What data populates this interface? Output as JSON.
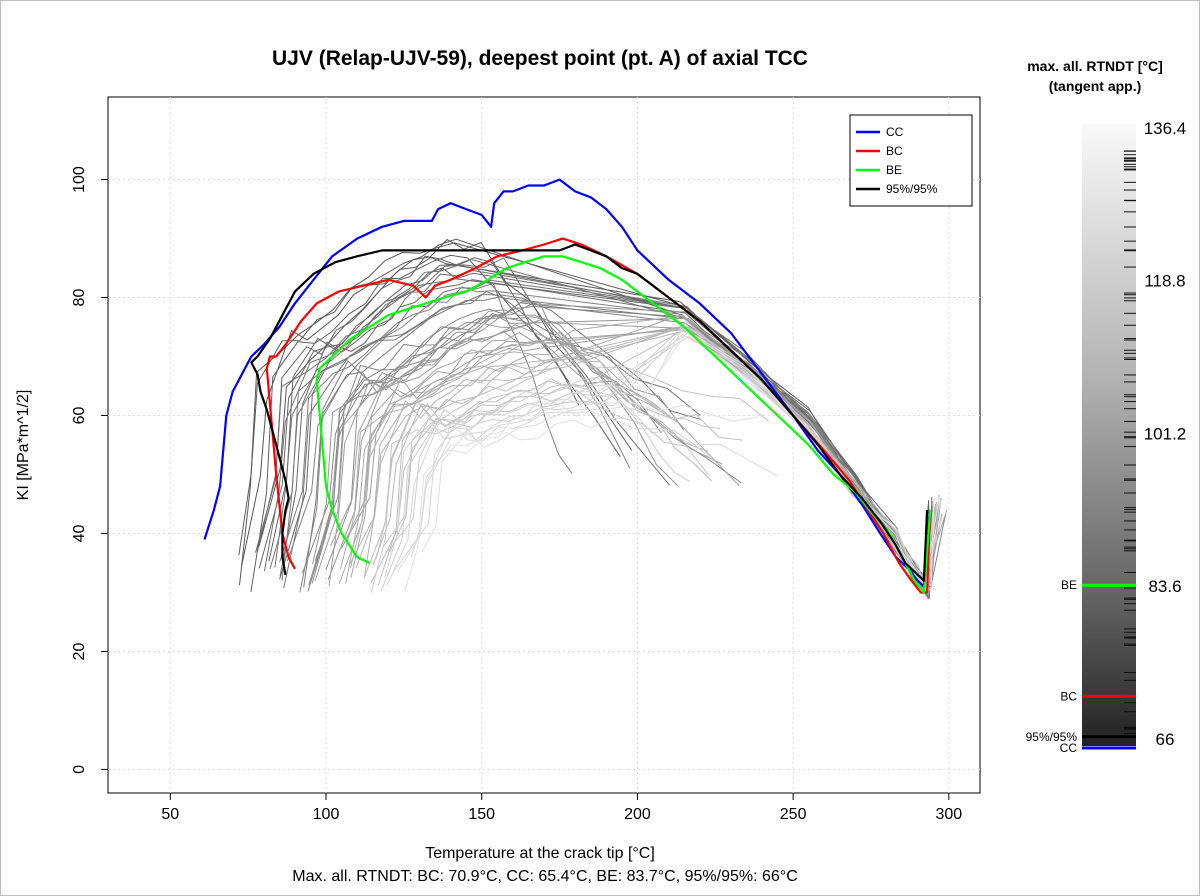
{
  "chart_data": {
    "type": "line",
    "title": "UJV (Relap-UJV-59), deepest point (pt. A) of axial TCC",
    "xlabel": "Temperature at the crack tip [°C]",
    "ylabel": "KI [MPa*m^1/2]",
    "subtitle": "Max. all. RTNDT: BC: 70.9°C, CC: 65.4°C, BE: 83.7°C, 95%/95%: 66°C",
    "xlim": [
      30,
      310
    ],
    "ylim": [
      -4,
      114
    ],
    "x_ticks": [
      "50",
      "100",
      "150",
      "200",
      "250",
      "300"
    ],
    "y_ticks": [
      "0",
      "20",
      "40",
      "60",
      "80",
      "100"
    ],
    "grid": true,
    "legend_position": "top-right",
    "legend": [
      {
        "name": "CC",
        "color": "#0000ff"
      },
      {
        "name": "BC",
        "color": "#ff0000"
      },
      {
        "name": "BE",
        "color": "#00ff00"
      },
      {
        "name": "95%/95%",
        "color": "#000000"
      }
    ],
    "series": [
      {
        "name": "CC",
        "color": "#0000ff",
        "x": [
          61,
          64,
          66,
          67,
          68,
          70,
          73,
          76,
          80,
          85,
          90,
          96,
          102,
          110,
          118,
          125,
          130,
          134,
          136,
          140,
          145,
          150,
          153,
          154,
          157,
          160,
          165,
          170,
          175,
          180,
          185,
          190,
          195,
          200,
          210,
          220,
          230,
          240,
          250,
          258,
          265,
          272,
          278,
          283,
          287,
          290,
          292,
          293,
          294
        ],
        "y": [
          39,
          44,
          48,
          54,
          60,
          64,
          67,
          70,
          72,
          75,
          79,
          83,
          87,
          90,
          92,
          93,
          93,
          93,
          95,
          96,
          95,
          94,
          92,
          96,
          98,
          98,
          99,
          99,
          100,
          98,
          97,
          95,
          92,
          88,
          83,
          79,
          74,
          67,
          60,
          54,
          50,
          45,
          40,
          36,
          34,
          32,
          31,
          40,
          44
        ]
      },
      {
        "name": "BC",
        "color": "#ff0000",
        "x": [
          90,
          88,
          86,
          85,
          84,
          83,
          82,
          81,
          82,
          84,
          87,
          92,
          97,
          104,
          112,
          120,
          128,
          132,
          135,
          140,
          148,
          155,
          163,
          170,
          176,
          182,
          190,
          200,
          210,
          220,
          230,
          240,
          250,
          260,
          268,
          274,
          279,
          284,
          288,
          291,
          293,
          294
        ],
        "y": [
          34,
          36,
          40,
          45,
          50,
          56,
          62,
          68,
          70,
          70,
          72,
          76,
          79,
          81,
          82,
          83,
          82,
          80,
          82,
          83,
          85,
          87,
          88,
          89,
          90,
          89,
          87,
          84,
          80,
          76,
          71,
          66,
          60,
          54,
          49,
          44,
          40,
          35,
          32,
          30,
          30,
          44
        ]
      },
      {
        "name": "BE",
        "color": "#00ff00",
        "x": [
          114,
          110,
          105,
          102,
          100,
          99,
          98,
          97,
          98,
          102,
          108,
          114,
          120,
          126,
          132,
          138,
          145,
          152,
          158,
          164,
          170,
          176,
          182,
          188,
          195,
          205,
          215,
          225,
          235,
          245,
          255,
          263,
          270,
          276,
          281,
          285,
          289,
          292,
          294
        ],
        "y": [
          35,
          36,
          40,
          44,
          48,
          54,
          60,
          66,
          68,
          70,
          73,
          75,
          77,
          78,
          79,
          80,
          81,
          83,
          85,
          86,
          87,
          87,
          86,
          85,
          83,
          79,
          75,
          70,
          65,
          60,
          55,
          50,
          47,
          43,
          40,
          36,
          32,
          30,
          44
        ]
      },
      {
        "name": "95%/95%",
        "color": "#000000",
        "x": [
          87,
          86,
          86,
          87,
          88,
          87,
          85,
          83,
          81,
          79,
          78,
          77,
          76,
          78,
          82,
          86,
          90,
          96,
          103,
          110,
          118,
          126,
          135,
          145,
          155,
          165,
          175,
          180,
          185,
          190,
          195,
          200,
          210,
          220,
          230,
          240,
          250,
          258,
          265,
          272,
          278,
          283,
          286,
          288,
          290,
          292,
          293
        ],
        "y": [
          33,
          36,
          40,
          44,
          46,
          49,
          53,
          57,
          61,
          64,
          67,
          68,
          69,
          70,
          73,
          77,
          81,
          84,
          86,
          87,
          88,
          88,
          88,
          88,
          88,
          88,
          88,
          89,
          88,
          87,
          85,
          84,
          80,
          76,
          71,
          66,
          60,
          55,
          50,
          46,
          42,
          38,
          35,
          34,
          33,
          32,
          44
        ]
      }
    ],
    "ensemble": {
      "description_count": 60,
      "color_range": [
        "#555555",
        "#e0e0e0"
      ]
    },
    "colorbar": {
      "title_line1": "max. all. RTNDT [°C]",
      "title_line2": "(tangent app.)",
      "ticks": [
        "136.4",
        "118.8",
        "101.2",
        "83.6",
        "66"
      ],
      "tick_values": [
        136.4,
        118.8,
        101.2,
        83.6,
        66
      ],
      "range": [
        65.4,
        136.4
      ],
      "markers": [
        {
          "name": "BE",
          "value": 83.7,
          "color": "#00ff00"
        },
        {
          "name": "BC",
          "value": 70.9,
          "color": "#ff0000"
        },
        {
          "name": "95%/95%",
          "value": 66,
          "color": "#000000"
        },
        {
          "name": "CC",
          "value": 65.4,
          "color": "#0000ff"
        }
      ]
    }
  }
}
